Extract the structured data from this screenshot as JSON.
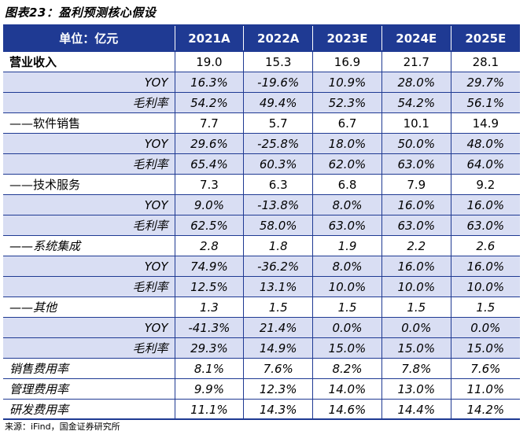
{
  "title": "图表23：盈利预测核心假设",
  "header": [
    "单位：亿元",
    "2021A",
    "2022A",
    "2023E",
    "2024E",
    "2025E"
  ],
  "rows": [
    {
      "label": "营业收入",
      "align": "left",
      "bold": true,
      "italic": false,
      "shade": false,
      "values": [
        "19.0",
        "15.3",
        "16.9",
        "21.7",
        "28.1"
      ]
    },
    {
      "label": "YOY",
      "align": "right",
      "bold": false,
      "italic": true,
      "shade": true,
      "values": [
        "16.3%",
        "-19.6%",
        "10.9%",
        "28.0%",
        "29.7%"
      ]
    },
    {
      "label": "毛利率",
      "align": "right",
      "bold": false,
      "italic": true,
      "shade": true,
      "values": [
        "54.2%",
        "49.4%",
        "52.3%",
        "54.2%",
        "56.1%"
      ]
    },
    {
      "label": "——软件销售",
      "align": "left",
      "bold": false,
      "italic": false,
      "shade": false,
      "values": [
        "7.7",
        "5.7",
        "6.7",
        "10.1",
        "14.9"
      ]
    },
    {
      "label": "YOY",
      "align": "right",
      "bold": false,
      "italic": true,
      "shade": true,
      "values": [
        "29.6%",
        "-25.8%",
        "18.0%",
        "50.0%",
        "48.0%"
      ]
    },
    {
      "label": "毛利率",
      "align": "right",
      "bold": false,
      "italic": true,
      "shade": true,
      "values": [
        "65.4%",
        "60.3%",
        "62.0%",
        "63.0%",
        "64.0%"
      ]
    },
    {
      "label": "——技术服务",
      "align": "left",
      "bold": false,
      "italic": false,
      "shade": false,
      "values": [
        "7.3",
        "6.3",
        "6.8",
        "7.9",
        "9.2"
      ]
    },
    {
      "label": "YOY",
      "align": "right",
      "bold": false,
      "italic": true,
      "shade": true,
      "values": [
        "9.0%",
        "-13.8%",
        "8.0%",
        "16.0%",
        "16.0%"
      ]
    },
    {
      "label": "毛利率",
      "align": "right",
      "bold": false,
      "italic": true,
      "shade": true,
      "values": [
        "62.5%",
        "58.0%",
        "63.0%",
        "63.0%",
        "63.0%"
      ]
    },
    {
      "label": "——系统集成",
      "align": "left",
      "bold": false,
      "italic": true,
      "shade": false,
      "values": [
        "2.8",
        "1.8",
        "1.9",
        "2.2",
        "2.6"
      ]
    },
    {
      "label": "YOY",
      "align": "right",
      "bold": false,
      "italic": true,
      "shade": true,
      "values": [
        "74.9%",
        "-36.2%",
        "8.0%",
        "16.0%",
        "16.0%"
      ]
    },
    {
      "label": "毛利率",
      "align": "right",
      "bold": false,
      "italic": true,
      "shade": true,
      "values": [
        "12.5%",
        "13.1%",
        "10.0%",
        "10.0%",
        "10.0%"
      ]
    },
    {
      "label": "——其他",
      "align": "left",
      "bold": false,
      "italic": true,
      "shade": false,
      "values": [
        "1.3",
        "1.5",
        "1.5",
        "1.5",
        "1.5"
      ]
    },
    {
      "label": "YOY",
      "align": "right",
      "bold": false,
      "italic": true,
      "shade": true,
      "values": [
        "-41.3%",
        "21.4%",
        "0.0%",
        "0.0%",
        "0.0%"
      ]
    },
    {
      "label": "毛利率",
      "align": "right",
      "bold": false,
      "italic": true,
      "shade": true,
      "values": [
        "29.3%",
        "14.9%",
        "15.0%",
        "15.0%",
        "15.0%"
      ]
    },
    {
      "label": "销售费用率",
      "align": "left",
      "bold": false,
      "italic": true,
      "shade": false,
      "values": [
        "8.1%",
        "7.6%",
        "8.2%",
        "7.8%",
        "7.6%"
      ]
    },
    {
      "label": "管理费用率",
      "align": "left",
      "bold": false,
      "italic": true,
      "shade": false,
      "values": [
        "9.9%",
        "12.3%",
        "14.0%",
        "13.0%",
        "11.0%"
      ]
    },
    {
      "label": "研发费用率",
      "align": "left",
      "bold": false,
      "italic": true,
      "shade": false,
      "values": [
        "11.1%",
        "14.3%",
        "14.6%",
        "14.4%",
        "14.2%"
      ]
    }
  ],
  "source": "来源：iFind，国金证券研究所",
  "colors": {
    "header_bg": "#1f3a93",
    "shade_bg": "#d9def3"
  }
}
